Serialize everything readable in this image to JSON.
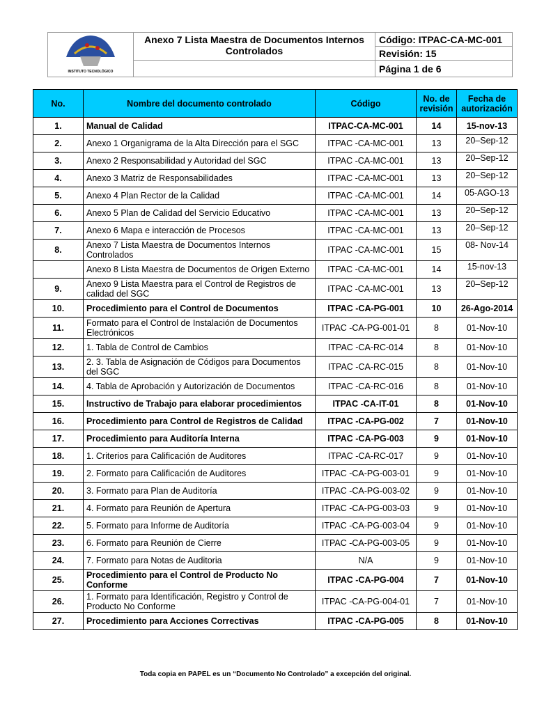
{
  "header": {
    "logo_text": "INSTITUTO TECNOLÓGICO de Pachuca",
    "title_line1": "Anexo 7   Lista Maestra de Documentos Internos",
    "title_line2": "Controlados",
    "codigo": "Código: ITPAC-CA-MC-001",
    "revision": "Revisión: 15",
    "pagina": "Página 1 de 6"
  },
  "table": {
    "columns": [
      "No.",
      "Nombre del documento controlado",
      "Código",
      "No. de revisión",
      "Fecha de autorización"
    ],
    "rows": [
      {
        "no": "1.",
        "name": "Manual de Calidad",
        "code": "ITPAC-CA-MC-001",
        "rev": "14",
        "date": "15-nov-13",
        "bold": true
      },
      {
        "no": "2.",
        "name": "Anexo 1 Organigrama de la Alta Dirección para el SGC",
        "code": "ITPAC -CA-MC-001",
        "rev": "13",
        "date": "20–Sep-12",
        "top": true
      },
      {
        "no": "3.",
        "name": "Anexo 2 Responsabilidad y Autoridad del SGC",
        "code": "ITPAC -CA-MC-001",
        "rev": "13",
        "date": "20–Sep-12",
        "top": true
      },
      {
        "no": "4.",
        "name": "Anexo 3 Matriz de Responsabilidades",
        "code": "ITPAC -CA-MC-001",
        "rev": "13",
        "date": "20–Sep-12",
        "top": true
      },
      {
        "no": "5.",
        "name": "Anexo 4 Plan Rector de la Calidad",
        "code": "ITPAC -CA-MC-001",
        "rev": "14",
        "date": "05-AGO-13",
        "top": true
      },
      {
        "no": "6.",
        "name": "Anexo 5 Plan de Calidad del Servicio Educativo",
        "code": "ITPAC -CA-MC-001",
        "rev": "13",
        "date": "20–Sep-12",
        "top": true
      },
      {
        "no": "7.",
        "name": "Anexo 6 Mapa e interacción de Procesos",
        "code": "ITPAC -CA-MC-001",
        "rev": "13",
        "date": "20–Sep-12",
        "top": true
      },
      {
        "no": "8.",
        "name": "Anexo 7 Lista Maestra de Documentos Internos Controlados",
        "code": "ITPAC -CA-MC-001",
        "rev": "15",
        "date": "08- Nov-14",
        "top": true
      },
      {
        "no": "",
        "name": "Anexo 8 Lista Maestra de Documentos de Origen Externo",
        "code": "ITPAC -CA-MC-001",
        "rev": "14",
        "date": "15-nov-13",
        "top": true
      },
      {
        "no": "9.",
        "name": "Anexo 9 Lista Maestra para el Control de Registros de calidad del SGC",
        "code": "ITPAC -CA-MC-001",
        "rev": "13",
        "date": "20–Sep-12",
        "top": true
      },
      {
        "no": "10.",
        "name": "Procedimiento  para el Control de Documentos",
        "code": "ITPAC -CA-PG-001",
        "rev": "10",
        "date": "26-Ago-2014",
        "bold": true
      },
      {
        "no": "11.",
        "name": "Formato para el Control de Instalación de Documentos Electrónicos",
        "code": "ITPAC -CA-PG-001-01",
        "rev": "8",
        "date": "01-Nov-10"
      },
      {
        "no": "12.",
        "name": "1.  Tabla de Control de Cambios",
        "code": "ITPAC -CA-RC-014",
        "rev": "8",
        "date": "01-Nov-10"
      },
      {
        "no": "13.",
        "name": "2.  3.  Tabla de Asignación de Códigos para      Documentos del SGC",
        "code": "ITPAC -CA-RC-015",
        "rev": "8",
        "date": "01-Nov-10"
      },
      {
        "no": "14.",
        "name": "4. Tabla de Aprobación y Autorización de Documentos",
        "code": "ITPAC -CA-RC-016",
        "rev": "8",
        "date": "01-Nov-10"
      },
      {
        "no": "15.",
        "name": "Instructivo de Trabajo para elaborar procedimientos",
        "code": "ITPAC -CA-IT-01",
        "rev": "8",
        "date": "01-Nov-10",
        "bold": true
      },
      {
        "no": "16.",
        "name": "Procedimiento para Control de Registros de Calidad",
        "code": "ITPAC -CA-PG-002",
        "rev": "7",
        "date": "01-Nov-10",
        "bold": true
      },
      {
        "no": "17.",
        "name": "Procedimiento para Auditoría Interna",
        "code": "ITPAC -CA-PG-003",
        "rev": "9",
        "date": "01-Nov-10",
        "bold": true
      },
      {
        "no": "18.",
        "name": "1. Criterios para Calificación de Auditores",
        "code": "ITPAC -CA-RC-017",
        "rev": "9",
        "date": "01-Nov-10"
      },
      {
        "no": "19.",
        "name": "2. Formato para Calificación de Auditores",
        "code": "ITPAC -CA-PG-003-01",
        "rev": "9",
        "date": "01-Nov-10"
      },
      {
        "no": "20.",
        "name": "3. Formato para Plan de Auditoría",
        "code": "ITPAC -CA-PG-003-02",
        "rev": "9",
        "date": "01-Nov-10"
      },
      {
        "no": "21.",
        "name": "4. Formato para Reunión de Apertura",
        "code": "ITPAC -CA-PG-003-03",
        "rev": "9",
        "date": "01-Nov-10"
      },
      {
        "no": "22.",
        "name": "5. Formato para Informe de Auditoría",
        "code": "ITPAC -CA-PG-003-04",
        "rev": "9",
        "date": "01-Nov-10"
      },
      {
        "no": "23.",
        "name": "6. Formato para Reunión de Cierre",
        "code": "ITPAC -CA-PG-003-05",
        "rev": "9",
        "date": "01-Nov-10"
      },
      {
        "no": "24.",
        "name": "7. Formato para Notas de Auditoria",
        "code": "N/A",
        "rev": "9",
        "date": "01-Nov-10"
      },
      {
        "no": "25.",
        "name": "Procedimiento para el Control de Producto No Conforme",
        "code": "ITPAC -CA-PG-004",
        "rev": "7",
        "date": "01-Nov-10",
        "bold": true
      },
      {
        "no": "26.",
        "name": "1. Formato para Identificación, Registro y Control de Producto No Conforme",
        "code": "ITPAC -CA-PG-004-01",
        "rev": "7",
        "date": "01-Nov-10"
      },
      {
        "no": "27.",
        "name": "Procedimiento para Acciones Correctivas",
        "code": "ITPAC -CA-PG-005",
        "rev": "8",
        "date": "01-Nov-10",
        "bold": true
      }
    ]
  },
  "footer": "Toda copia en PAPEL es un “Documento No Controlado” a excepción del original."
}
